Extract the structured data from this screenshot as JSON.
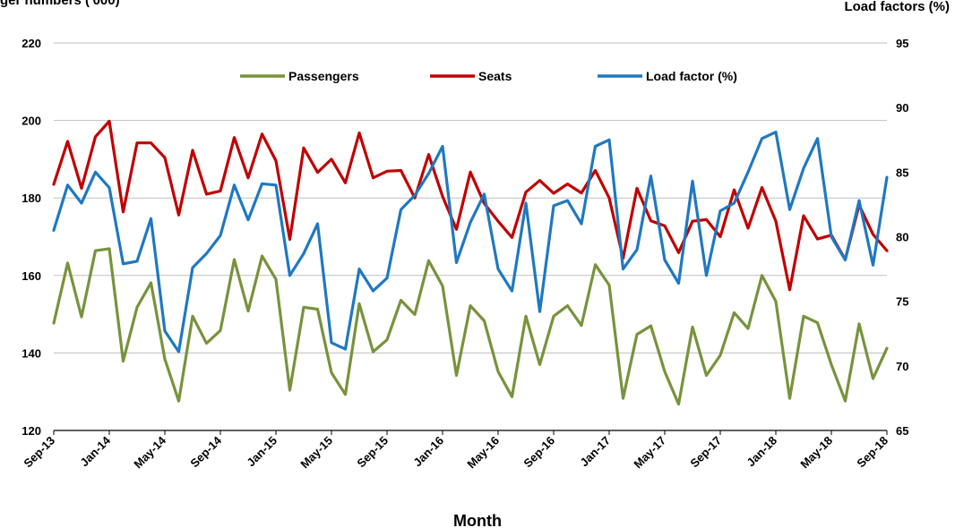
{
  "chart_data": {
    "type": "line",
    "title_left": "ger numbers ('000)",
    "title_right": "Load factors (%)",
    "xlabel": "Month",
    "ylim_left": [
      120,
      220
    ],
    "yticks_left": [
      "120",
      "140",
      "160",
      "180",
      "200",
      "220"
    ],
    "ylim_right": [
      65,
      95
    ],
    "yticks_right": [
      "65",
      "70",
      "75",
      "80",
      "85",
      "90",
      "95"
    ],
    "grid": "horizontal",
    "legend_position": "top",
    "x_tick_labels": [
      "Sep-13",
      "Jan-14",
      "May-14",
      "Sep-14",
      "Jan-15",
      "May-15",
      "Sep-15",
      "Jan-16",
      "May-16",
      "Sep-16",
      "Jan-17",
      "May-17",
      "Sep-17",
      "Jan-18",
      "May-18",
      "Sep-18"
    ],
    "x_count": 61,
    "series": [
      {
        "name": "Passengers",
        "axis": "left",
        "color": "#77933c",
        "values": [
          147.7,
          163.2,
          149.3,
          166.4,
          166.9,
          137.9,
          151.8,
          158.1,
          138.4,
          127.6,
          149.5,
          142.5,
          145.8,
          164.1,
          150.8,
          165.0,
          159.0,
          130.4,
          151.8,
          151.3,
          134.9,
          129.3,
          152.7,
          140.3,
          143.4,
          153.6,
          149.9,
          163.8,
          157.3,
          134.2,
          152.2,
          148.3,
          135.2,
          128.7,
          149.5,
          137.0,
          149.5,
          152.2,
          147.1,
          162.8,
          157.5,
          128.3,
          144.8,
          147.0,
          135.2,
          126.8,
          146.7,
          134.2,
          139.4,
          150.4,
          146.3,
          160.0,
          153.3,
          128.3,
          149.5,
          147.8,
          137.0,
          127.6,
          147.5,
          133.4,
          141.2
        ]
      },
      {
        "name": "Seats",
        "axis": "left",
        "color": "#c00000",
        "values": [
          183.5,
          194.6,
          182.5,
          195.8,
          199.8,
          176.4,
          194.2,
          194.2,
          190.4,
          175.6,
          192.3,
          181.0,
          181.8,
          195.6,
          185.2,
          196.5,
          189.6,
          169.3,
          192.9,
          186.6,
          190.0,
          183.9,
          196.8,
          185.2,
          186.9,
          187.1,
          180.0,
          191.2,
          180.4,
          171.9,
          186.7,
          178.6,
          174.0,
          169.8,
          181.5,
          184.5,
          181.2,
          183.6,
          181.3,
          187.1,
          180.0,
          164.4,
          182.5,
          174.1,
          172.8,
          165.9,
          174.0,
          174.4,
          170.0,
          182.1,
          172.2,
          182.7,
          174.0,
          156.3,
          175.4,
          169.4,
          170.4,
          164.1,
          178.2,
          170.6,
          166.4
        ]
      },
      {
        "name": "Load factor (%)",
        "axis": "right",
        "color": "#1f78c1",
        "values": [
          80.5,
          84.0,
          82.6,
          85.0,
          83.8,
          77.9,
          78.1,
          81.4,
          72.7,
          71.1,
          77.6,
          78.7,
          80.1,
          84.0,
          81.3,
          84.1,
          84.0,
          77.0,
          78.7,
          81.0,
          71.8,
          71.3,
          77.5,
          75.8,
          76.8,
          82.1,
          83.2,
          84.9,
          87.0,
          78.0,
          81.1,
          83.3,
          77.5,
          75.8,
          82.6,
          74.2,
          82.4,
          82.8,
          81.0,
          87.0,
          87.5,
          77.5,
          79.0,
          84.7,
          78.2,
          76.4,
          84.3,
          77.0,
          82.0,
          82.6,
          85.0,
          87.6,
          88.1,
          82.1,
          85.3,
          87.6,
          80.0,
          78.2,
          82.8,
          77.8,
          84.6
        ]
      }
    ]
  }
}
